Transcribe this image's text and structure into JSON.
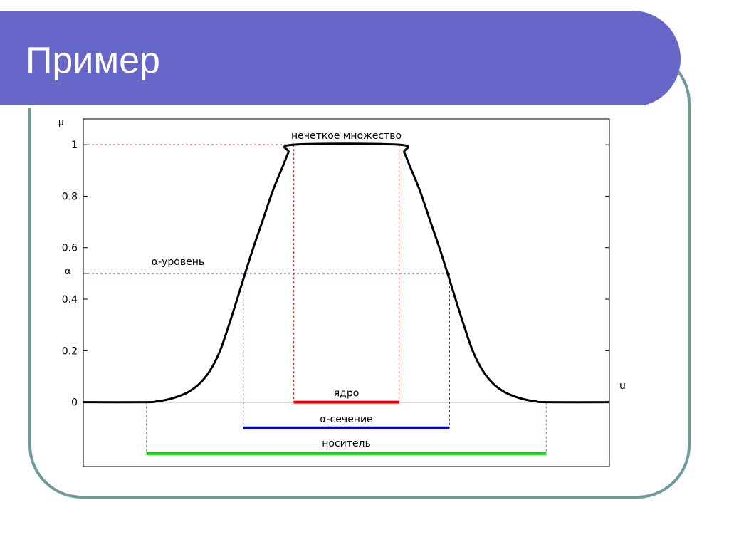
{
  "slide": {
    "title": "Пример"
  },
  "colors": {
    "title_band": "#6766c9",
    "frame": "#6e9a9a",
    "curve": "#000000",
    "core": "#ff0000",
    "alpha_cut": "#0000cc",
    "support": "#00dd00"
  },
  "chart_data": {
    "type": "line",
    "title": "",
    "ylabel": "µ",
    "xlabel": "u",
    "ylim": [
      -0.25,
      1.1
    ],
    "y_ticks": [
      0,
      0.2,
      0.4,
      0.6,
      0.8,
      1
    ],
    "y_tick_labels": [
      "0",
      "0.2",
      "0.4",
      "0.6",
      "0.8",
      "1"
    ],
    "alpha_tick": {
      "label": "α",
      "value": 0.5
    },
    "xlim": [
      0,
      10
    ],
    "series": [
      {
        "values": [
          [
            0,
            0
          ],
          [
            1.2,
            0
          ],
          [
            1.4,
            0.003
          ],
          [
            1.6,
            0.01
          ],
          [
            1.8,
            0.022
          ],
          [
            2,
            0.04
          ],
          [
            2.2,
            0.07
          ],
          [
            2.4,
            0.12
          ],
          [
            2.6,
            0.2
          ],
          [
            2.8,
            0.32
          ],
          [
            3,
            0.45
          ],
          [
            3.2,
            0.58
          ],
          [
            3.4,
            0.7
          ],
          [
            3.6,
            0.82
          ],
          [
            3.8,
            0.92
          ],
          [
            3.9,
            0.97
          ],
          [
            4,
            1
          ],
          [
            6,
            1
          ],
          [
            6.1,
            0.97
          ],
          [
            6.2,
            0.92
          ],
          [
            6.4,
            0.82
          ],
          [
            6.6,
            0.7
          ],
          [
            6.8,
            0.58
          ],
          [
            7,
            0.45
          ],
          [
            7.2,
            0.32
          ],
          [
            7.4,
            0.2
          ],
          [
            7.6,
            0.12
          ],
          [
            7.8,
            0.07
          ],
          [
            8,
            0.04
          ],
          [
            8.2,
            0.022
          ],
          [
            8.4,
            0.01
          ],
          [
            8.6,
            0.003
          ],
          [
            8.8,
            0
          ],
          [
            10,
            0
          ]
        ]
      }
    ],
    "annotations": {
      "fuzzy_set": "нечеткое множество",
      "alpha_level": "α-уровень",
      "core": "ядро",
      "alpha_cut": "α-сечение",
      "support": "носитель"
    },
    "alpha_level_value": 0.5,
    "core_range": [
      4,
      6
    ],
    "alpha_cut_range": [
      3.04,
      6.96
    ],
    "support_range": [
      1.2,
      8.8
    ],
    "alpha_cut_y": -0.1,
    "support_y": -0.2
  }
}
